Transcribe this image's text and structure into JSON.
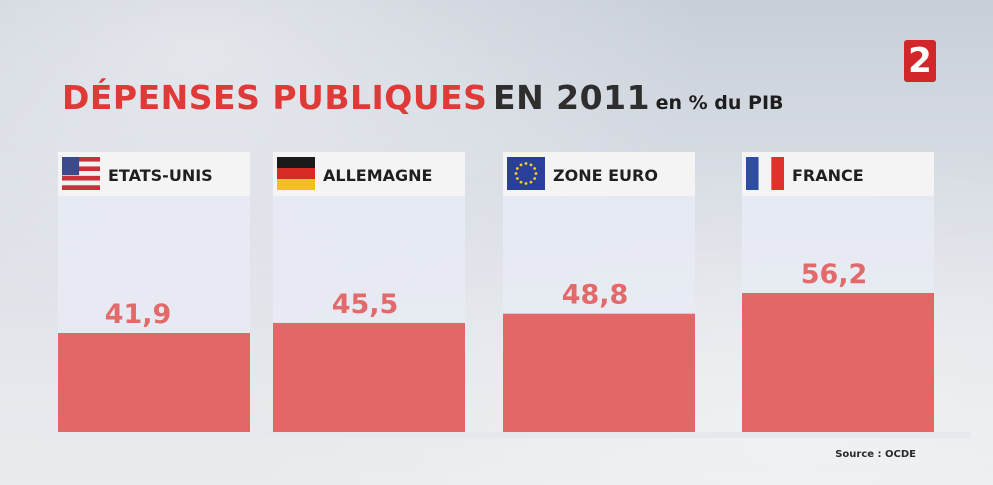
{
  "title": {
    "part1": "DÉPENSES PUBLIQUES",
    "part2": "EN 2011",
    "part3": "en % du PIB"
  },
  "channel_logo": "2",
  "source": "Source : OCDE",
  "colors": {
    "bar": "#e46767",
    "panel": "#e7ebf3",
    "header": "#f4f4f5",
    "value_text": "#e36a6a",
    "title_red": "#e03a38"
  },
  "chart_data": {
    "type": "bar",
    "title": "DÉPENSES PUBLIQUES EN 2011 en % du PIB",
    "categories": [
      "ETATS-UNIS",
      "ALLEMAGNE",
      "ZONE EURO",
      "FRANCE"
    ],
    "values": [
      41.9,
      45.5,
      48.8,
      56.2
    ],
    "value_labels": [
      "41,9",
      "45,5",
      "48,8",
      "56,2"
    ],
    "flags": [
      "usa-flag-icon",
      "germany-flag-icon",
      "eu-flag-icon",
      "france-flag-icon"
    ],
    "xlabel": "",
    "ylabel": "",
    "grid": false,
    "legend": "none"
  }
}
